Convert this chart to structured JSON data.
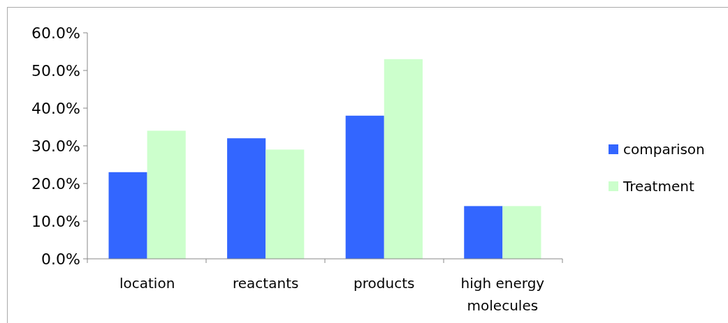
{
  "chart_data": {
    "type": "bar",
    "categories": [
      "location",
      "reactants",
      "products",
      "high energy molecules"
    ],
    "series": [
      {
        "name": "comparison",
        "color": "#3366ff",
        "values": [
          23,
          32,
          38,
          14
        ]
      },
      {
        "name": "Treatment",
        "color": "#ccffcc",
        "values": [
          34,
          29,
          53,
          14
        ]
      }
    ],
    "ylim": [
      0,
      60
    ],
    "yticks": [
      {
        "value": 0,
        "label": "0.0%"
      },
      {
        "value": 10,
        "label": "10.0%"
      },
      {
        "value": 20,
        "label": "20.0%"
      },
      {
        "value": 30,
        "label": "30.0%"
      },
      {
        "value": 40,
        "label": "40.0%"
      },
      {
        "value": 50,
        "label": "50.0%"
      },
      {
        "value": 60,
        "label": "60.0%"
      }
    ],
    "grid": false,
    "legend": "right"
  }
}
